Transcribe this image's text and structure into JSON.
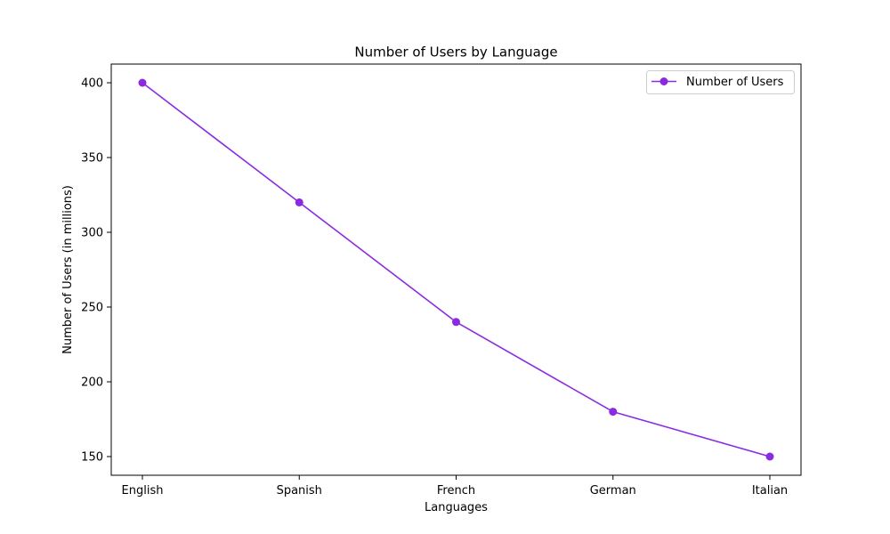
{
  "chart_data": {
    "type": "line",
    "title": "Number of Users by Language",
    "xlabel": "Languages",
    "ylabel": "Number of Users (in millions)",
    "categories": [
      "English",
      "Spanish",
      "French",
      "German",
      "Italian"
    ],
    "series": [
      {
        "name": "Number of Users",
        "values": [
          400,
          320,
          240,
          180,
          150
        ],
        "color": "#8A2BE2",
        "marker": "circle"
      }
    ],
    "ylim": [
      137.5,
      412.5
    ],
    "yticks": [
      150,
      200,
      250,
      300,
      350,
      400
    ],
    "grid": false,
    "legend_position": "top-right"
  }
}
